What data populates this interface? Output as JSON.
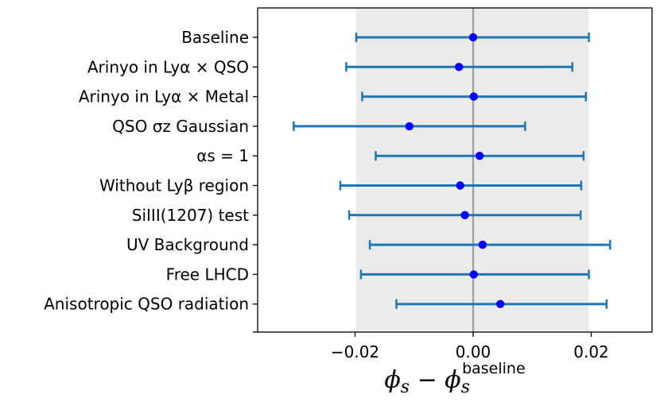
{
  "chart_data": {
    "type": "errorbar",
    "title": "",
    "xlabel": {
      "main": "ϕs − ϕs",
      "sup": "baseline"
    },
    "ylabel": "",
    "xlim": [
      -0.0365,
      0.0303
    ],
    "xticks": [
      -0.02,
      0.0,
      0.02
    ],
    "xtick_labels": [
      "−0.02",
      "0.00",
      "0.02"
    ],
    "reference_line": 0.0,
    "shaded_band": [
      -0.0198,
      0.0196
    ],
    "colors": {
      "errorbar": "#1f77b4",
      "marker": "#0000ff",
      "band": "#ebebeb",
      "reference": "#a0a0a0"
    },
    "categories": [
      "Baseline",
      "Arinyo in Lyα × QSO",
      "Arinyo in Lyα × Metal",
      "QSO σz Gaussian",
      "αs = 1",
      "Without Lyβ region",
      "SiIII(1207) test",
      "UV Background",
      "Free LHCD",
      "Anisotropic QSO radiation"
    ],
    "values": [
      0.0,
      -0.0024,
      0.0001,
      -0.0108,
      0.0011,
      -0.0022,
      -0.0014,
      0.0016,
      0.0001,
      0.0046
    ],
    "lower": [
      -0.0198,
      -0.0215,
      -0.0188,
      -0.0304,
      -0.0165,
      -0.0225,
      -0.021,
      -0.0175,
      -0.019,
      -0.013
    ],
    "upper": [
      0.0196,
      0.0168,
      0.0191,
      0.0088,
      0.0187,
      0.0183,
      0.0182,
      0.0232,
      0.0196,
      0.0226
    ]
  }
}
